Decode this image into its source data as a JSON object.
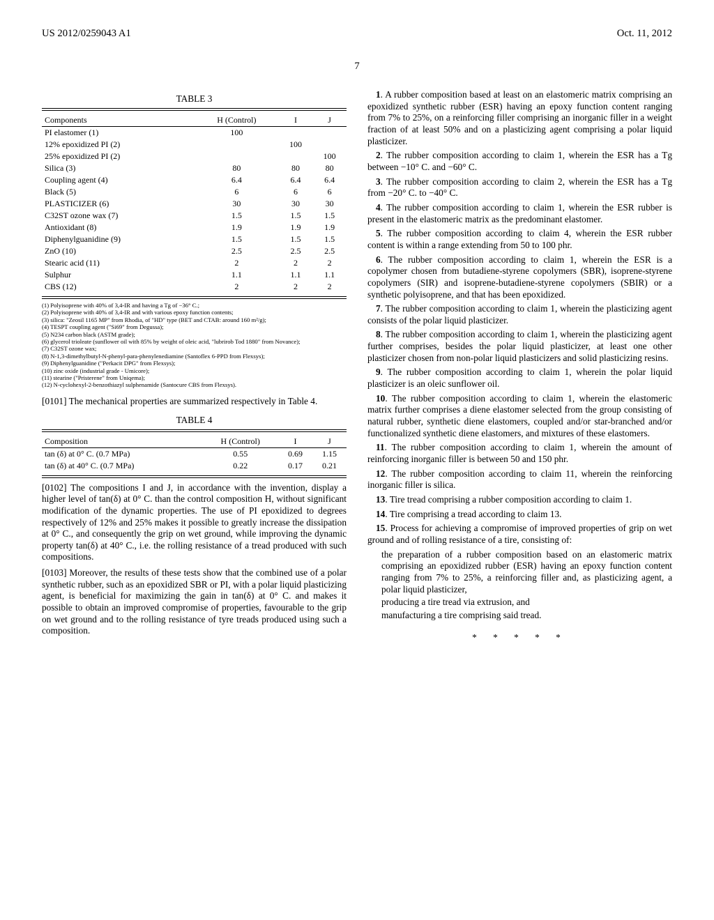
{
  "header": {
    "left": "US 2012/0259043 A1",
    "right": "Oct. 11, 2012"
  },
  "page_number": "7",
  "table3": {
    "title": "TABLE 3",
    "headers": [
      "Components",
      "H (Control)",
      "I",
      "J"
    ],
    "rows": [
      [
        "PI elastomer (1)",
        "100",
        "",
        ""
      ],
      [
        "12% epoxidized PI (2)",
        "",
        "100",
        ""
      ],
      [
        "25% epoxidized PI (2)",
        "",
        "",
        "100"
      ],
      [
        "Silica (3)",
        "80",
        "80",
        "80"
      ],
      [
        "Coupling agent (4)",
        "6.4",
        "6.4",
        "6.4"
      ],
      [
        "Black (5)",
        "6",
        "6",
        "6"
      ],
      [
        "PLASTICIZER (6)",
        "30",
        "30",
        "30"
      ],
      [
        "C32ST ozone wax (7)",
        "1.5",
        "1.5",
        "1.5"
      ],
      [
        "Antioxidant (8)",
        "1.9",
        "1.9",
        "1.9"
      ],
      [
        "Diphenylguanidine (9)",
        "1.5",
        "1.5",
        "1.5"
      ],
      [
        "ZnO (10)",
        "2.5",
        "2.5",
        "2.5"
      ],
      [
        "Stearic acid (11)",
        "2",
        "2",
        "2"
      ],
      [
        "Sulphur",
        "1.1",
        "1.1",
        "1.1"
      ],
      [
        "CBS (12)",
        "2",
        "2",
        "2"
      ]
    ],
    "footnotes": [
      "(1) Polyisoprene with 40% of 3,4-IR and having a Tg of −36° C.;",
      "(2) Polyisoprene with 40% of 3,4-IR and with various epoxy function contents;",
      "(3) silica: \"Zeosil 1165 MP\" from Rhodia, of \"HD\" type (BET and CTAB: around 160 m²/g);",
      "(4) TESPT coupling agent (\"Si69\" from Degussa);",
      "(5) N234 carbon black (ASTM grade);",
      "(6) glycerol trioleate (sunflower oil with 85% by weight of oleic acid, \"lubrirob Tod 1880\" from Novance);",
      "(7) C32ST ozone wax;",
      "(8) N-1,3-dimethylbutyl-N-phenyl-para-phenylenediamine (Santoflex 6-PPD from Flexsys);",
      "(9) Diphenylguanidine (\"Perkacit DPG\" from Flexsys);",
      "(10) zinc oxide (industrial grade - Umicore);",
      "(11) stearine (\"Pristerene\" from Uniqema);",
      "(12) N-cyclohexyl-2-benzothiazyl sulphenamide (Santocure CBS from Flexsys)."
    ]
  },
  "para_0101": "[0101]   The mechanical properties are summarized respectively in Table 4.",
  "table4": {
    "title": "TABLE 4",
    "headers": [
      "Composition",
      "H (Control)",
      "I",
      "J"
    ],
    "rows": [
      [
        "tan (δ) at 0° C. (0.7 MPa)",
        "0.55",
        "0.69",
        "1.15"
      ],
      [
        "tan (δ) at 40° C. (0.7 MPa)",
        "0.22",
        "0.17",
        "0.21"
      ]
    ]
  },
  "para_0102": "[0102]   The compositions I and J, in accordance with the invention, display a higher level of tan(δ) at 0° C. than the control composition H, without significant modification of the dynamic properties. The use of PI epoxidized to degrees respectively of 12% and 25% makes it possible to greatly increase the dissipation at 0° C., and consequently the grip on wet ground, while improving the dynamic property tan(δ) at 40° C., i.e. the rolling resistance of a tread produced with such compositions.",
  "para_0103": "[0103]   Moreover, the results of these tests show that the combined use of a polar synthetic rubber, such as an epoxidized SBR or PI, with a polar liquid plasticizing agent, is beneficial for maximizing the gain in tan(δ) at 0° C. and makes it possible to obtain an improved compromise of properties, favourable to the grip on wet ground and to the rolling resistance of tyre treads produced using such a composition.",
  "claims": [
    {
      "num": "1",
      "text": ". A rubber composition based at least on an elastomeric matrix comprising an epoxidized synthetic rubber (ESR) having an epoxy function content ranging from 7% to 25%, on a reinforcing filler comprising an inorganic filler in a weight fraction of at least 50% and on a plasticizing agent comprising a polar liquid plasticizer."
    },
    {
      "num": "2",
      "text": ". The rubber composition according to claim 1, wherein the ESR has a Tg between −10° C. and −60° C."
    },
    {
      "num": "3",
      "text": ". The rubber composition according to claim 2, wherein the ESR has a Tg from −20° C. to −40° C."
    },
    {
      "num": "4",
      "text": ". The rubber composition according to claim 1, wherein the ESR rubber is present in the elastomeric matrix as the predominant elastomer."
    },
    {
      "num": "5",
      "text": ". The rubber composition according to claim 4, wherein the ESR rubber content is within a range extending from 50 to 100 phr."
    },
    {
      "num": "6",
      "text": ". The rubber composition according to claim 1, wherein the ESR is a copolymer chosen from butadiene-styrene copolymers (SBR), isoprene-styrene copolymers (SIR) and isoprene-butadiene-styrene copolymers (SBIR) or a synthetic polyisoprene, and that has been epoxidized."
    },
    {
      "num": "7",
      "text": ". The rubber composition according to claim 1, wherein the plasticizing agent consists of the polar liquid plasticizer."
    },
    {
      "num": "8",
      "text": ". The rubber composition according to claim 1, wherein the plasticizing agent further comprises, besides the polar liquid plasticizer, at least one other plasticizer chosen from non-polar liquid plasticizers and solid plasticizing resins."
    },
    {
      "num": "9",
      "text": ". The rubber composition according to claim 1, wherein the polar liquid plasticizer is an oleic sunflower oil."
    },
    {
      "num": "10",
      "text": ". The rubber composition according to claim 1, wherein the elastomeric matrix further comprises a diene elastomer selected from the group consisting of natural rubber, synthetic diene elastomers, coupled and/or star-branched and/or functionalized synthetic diene elastomers, and mixtures of these elastomers."
    },
    {
      "num": "11",
      "text": ". The rubber composition according to claim 1, wherein the amount of reinforcing inorganic filler is between 50 and 150 phr."
    },
    {
      "num": "12",
      "text": ". The rubber composition according to claim 11, wherein the reinforcing inorganic filler is silica."
    },
    {
      "num": "13",
      "text": ". Tire tread comprising a rubber composition according to claim 1."
    },
    {
      "num": "14",
      "text": ". Tire comprising a tread according to claim 13."
    },
    {
      "num": "15",
      "text": ". Process for achieving a compromise of improved properties of grip on wet ground and of rolling resistance of a tire, consisting of:"
    }
  ],
  "claim15_sub": [
    "the preparation of a rubber composition based on an elastomeric matrix comprising an epoxidized rubber (ESR) having an epoxy function content ranging from 7% to 25%, a reinforcing filler and, as plasticizing agent, a polar liquid plasticizer,",
    "producing a tire tread via extrusion, and",
    "manufacturing a tire comprising said tread."
  ],
  "stars": "* * * * *"
}
